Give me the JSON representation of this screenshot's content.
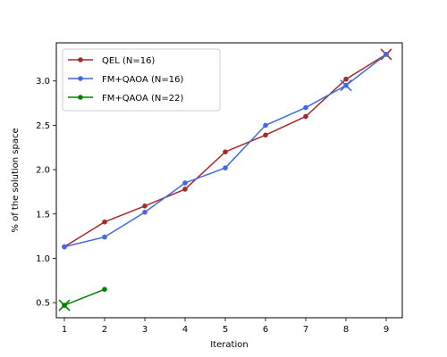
{
  "chart_data": {
    "type": "line",
    "title": "",
    "xlabel": "Iteration",
    "ylabel": "% of the solution space",
    "xlim": [
      0.8,
      9.4
    ],
    "ylim": [
      0.33,
      3.43
    ],
    "xticks": [
      1,
      2,
      3,
      4,
      5,
      6,
      7,
      8,
      9
    ],
    "yticks": [
      0.5,
      1.0,
      1.5,
      2.0,
      2.5,
      3.0
    ],
    "ytick_labels": [
      "0.5",
      "1.0",
      "1.5",
      "2.0",
      "2.5",
      "3.0"
    ],
    "grid": false,
    "legend_position": "upper-left",
    "series": [
      {
        "name": "QEL (N=16)",
        "color": "#a52a2a",
        "x": [
          1,
          2,
          3,
          4,
          5,
          6,
          7,
          8,
          9
        ],
        "y": [
          1.13,
          1.41,
          1.59,
          1.78,
          2.2,
          2.39,
          2.6,
          3.02,
          3.3
        ],
        "end_marker_x": 9,
        "end_marker_y": 3.3
      },
      {
        "name": "FM+QAOA (N=16)",
        "color": "#4169e1",
        "x": [
          1,
          2,
          3,
          4,
          5,
          6,
          7,
          8,
          9
        ],
        "y": [
          1.13,
          1.24,
          1.52,
          1.85,
          2.02,
          2.5,
          2.7,
          2.95,
          3.3
        ],
        "end_marker_x": 8,
        "end_marker_y": 2.95
      },
      {
        "name": "FM+QAOA (N=22)",
        "color": "#008000",
        "x": [
          1,
          2
        ],
        "y": [
          0.47,
          0.65
        ],
        "end_marker_x": 1,
        "end_marker_y": 0.47
      }
    ]
  }
}
